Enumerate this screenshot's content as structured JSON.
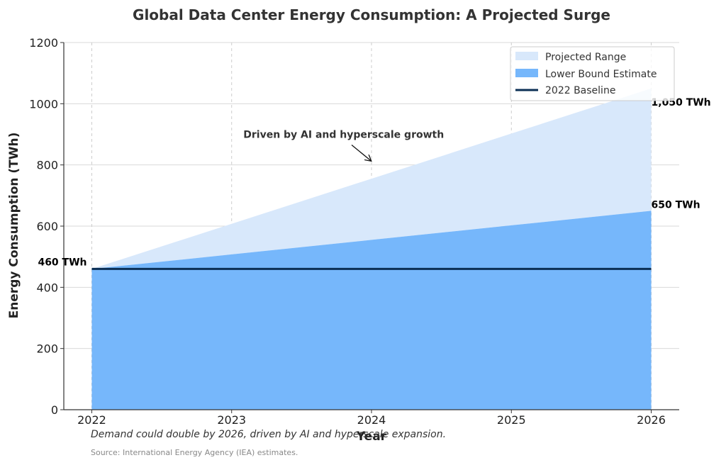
{
  "chart_data": {
    "type": "area",
    "title": "Global Data Center Energy Consumption: A Projected Surge",
    "xlabel": "Year",
    "ylabel": "Energy Consumption (TWh)",
    "x": [
      2022,
      2023,
      2024,
      2025,
      2026
    ],
    "xlim": [
      2021.8,
      2026.2
    ],
    "ylim": [
      0,
      1200
    ],
    "yticks": [
      0,
      200,
      400,
      600,
      800,
      1000,
      1200
    ],
    "grid": true,
    "legend_position": "top-right",
    "series": [
      {
        "name": "Projected Range",
        "kind": "area-band",
        "upper": [
          460,
          607.5,
          755,
          902.5,
          1050
        ],
        "lower": [
          460,
          507.5,
          555,
          602.5,
          650
        ],
        "color": "#d8e8fb"
      },
      {
        "name": "Lower Bound Estimate",
        "kind": "area",
        "values": [
          460,
          507.5,
          555,
          602.5,
          650
        ],
        "color": "#76b7fb"
      },
      {
        "name": "2022 Baseline",
        "kind": "line",
        "values": [
          460,
          460,
          460,
          460,
          460
        ],
        "color": "#0b2f55"
      }
    ],
    "data_labels": [
      {
        "id": "start",
        "x": 2022,
        "y": 460,
        "text": "460 TWh"
      },
      {
        "id": "upper",
        "x": 2026,
        "y": 1050,
        "text": "1,050 TWh"
      },
      {
        "id": "lower",
        "x": 2026,
        "y": 650,
        "text": "650 TWh"
      }
    ],
    "annotation": {
      "text": "Driven by AI and hyperscale growth",
      "x": 2023,
      "y": 900,
      "arrow_to_x": 2024,
      "arrow_to_y": 800
    },
    "caption": "Demand could double by 2026, driven by AI and hyperscale expansion.",
    "source": "Source: International Energy Agency (IEA) estimates."
  }
}
